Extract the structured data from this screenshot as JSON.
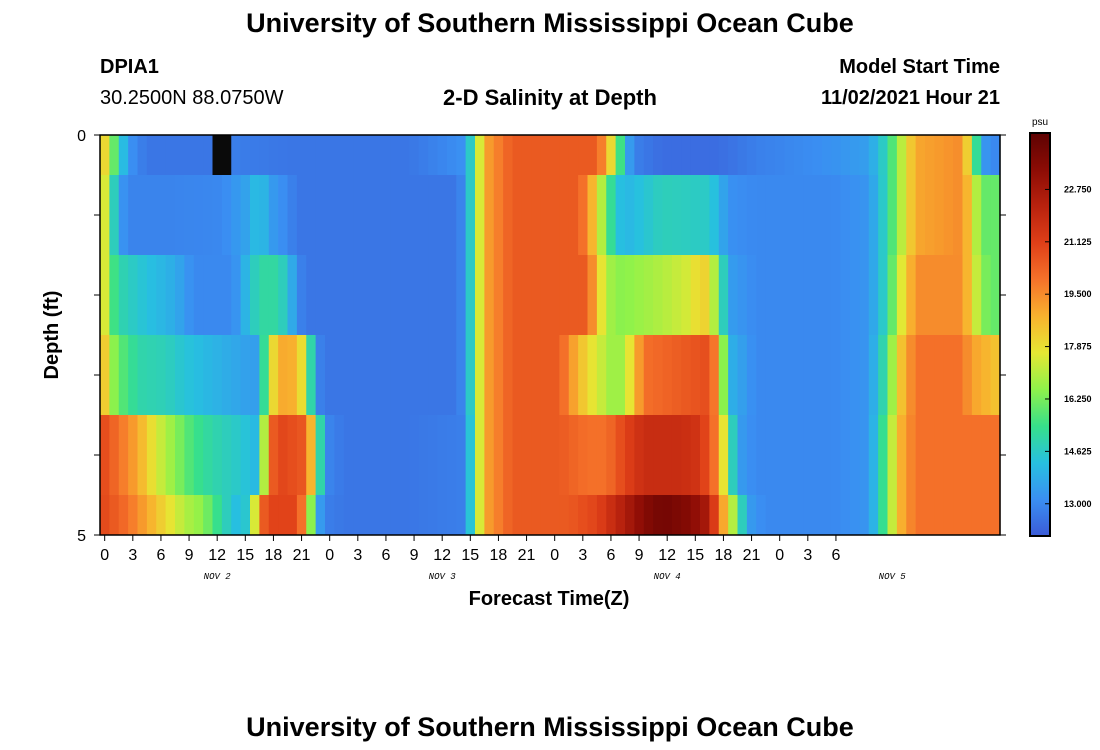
{
  "header": {
    "title": "University of Southern Mississippi Ocean Cube",
    "station": "DPIA1",
    "coords": "30.2500N  88.0750W",
    "chart_title": "2-D Salinity at Depth",
    "model_label": "Model Start Time",
    "model_time": "11/02/2021 Hour 21"
  },
  "footer": {
    "title": "University of Southern Mississippi Ocean Cube"
  },
  "chart_data": {
    "type": "heatmap",
    "title": "2-D Salinity at Depth",
    "xlabel": "Forecast Time(Z)",
    "ylabel": "Depth (ft)",
    "x_tick_labels": [
      "0",
      "3",
      "6",
      "9",
      "12",
      "15",
      "18",
      "21",
      "0",
      "3",
      "6",
      "9",
      "12",
      "15",
      "18",
      "21",
      "0",
      "3",
      "6",
      "9",
      "12",
      "15",
      "18",
      "21",
      "0",
      "3",
      "6"
    ],
    "date_labels": [
      "NOV 2",
      "NOV 3",
      "NOV 4",
      "NOV 5"
    ],
    "y_tick_labels": [
      "0",
      "5"
    ],
    "ylim": [
      0,
      5
    ],
    "colorbar": {
      "unit": "psu",
      "tick_labels": [
        "13.000",
        "14.625",
        "16.250",
        "17.875",
        "19.500",
        "21.125",
        "22.750"
      ],
      "range": [
        12.0,
        24.5
      ],
      "colors": [
        "#3b5bd7",
        "#3a8ff2",
        "#27c0e0",
        "#37e08a",
        "#8ff24a",
        "#e6e733",
        "#f8b22e",
        "#f5722a",
        "#df3f18",
        "#b9220e",
        "#8c0c05",
        "#5e0202"
      ]
    },
    "hour_step": 1,
    "row_depths_ft": [
      0,
      1,
      2,
      3,
      4,
      5
    ],
    "salinity_keypoints": [
      [
        [
          0,
          19
        ],
        [
          1,
          17
        ],
        [
          2,
          15
        ],
        [
          3,
          13.3
        ],
        [
          5,
          12.6
        ],
        [
          12,
          12.6
        ],
        [
          13,
          12.8
        ],
        [
          20,
          12.6
        ],
        [
          33,
          12.6
        ],
        [
          39,
          13.2
        ],
        [
          40,
          16
        ],
        [
          41,
          19
        ],
        [
          44,
          20.5
        ],
        [
          53,
          20.5
        ],
        [
          54,
          19
        ],
        [
          55,
          17
        ],
        [
          56,
          14
        ],
        [
          57,
          12.8
        ],
        [
          60,
          12.4
        ],
        [
          66,
          12.4
        ],
        [
          70,
          12.8
        ],
        [
          72,
          12.9
        ],
        [
          78,
          13.2
        ],
        [
          82,
          13.5
        ],
        [
          84,
          15
        ],
        [
          85,
          16.5
        ],
        [
          87,
          19
        ],
        [
          92,
          19.5
        ],
        [
          93,
          17
        ],
        [
          94,
          13.5
        ],
        [
          95,
          13
        ]
      ],
      [
        [
          0,
          19
        ],
        [
          1,
          16
        ],
        [
          2,
          13.5
        ],
        [
          3,
          12.9
        ],
        [
          5,
          12.9
        ],
        [
          8,
          12.9
        ],
        [
          13,
          13
        ],
        [
          16,
          13.7
        ],
        [
          17,
          14.5
        ],
        [
          18,
          13.5
        ],
        [
          20,
          13
        ],
        [
          21,
          12.6
        ],
        [
          33,
          12.6
        ],
        [
          38,
          12.6
        ],
        [
          39,
          13.2
        ],
        [
          40,
          16
        ],
        [
          41,
          19
        ],
        [
          44,
          20.5
        ],
        [
          51,
          20.5
        ],
        [
          52,
          19.5
        ],
        [
          53,
          18
        ],
        [
          54,
          16
        ],
        [
          55,
          14.5
        ],
        [
          56,
          14
        ],
        [
          60,
          14.8
        ],
        [
          65,
          14.6
        ],
        [
          66,
          14
        ],
        [
          67,
          13.2
        ],
        [
          70,
          13
        ],
        [
          78,
          13
        ],
        [
          82,
          13.3
        ],
        [
          84,
          15
        ],
        [
          85,
          16.5
        ],
        [
          87,
          19
        ],
        [
          92,
          19.5
        ],
        [
          93,
          18
        ],
        [
          94,
          16
        ],
        [
          95,
          16
        ]
      ],
      [
        [
          0,
          19
        ],
        [
          1,
          16
        ],
        [
          2,
          15
        ],
        [
          4,
          14.5
        ],
        [
          8,
          13.8
        ],
        [
          10,
          13
        ],
        [
          14,
          13
        ],
        [
          15,
          13.5
        ],
        [
          16,
          14.5
        ],
        [
          17,
          15
        ],
        [
          18,
          15.2
        ],
        [
          19,
          15
        ],
        [
          20,
          14.5
        ],
        [
          21,
          13
        ],
        [
          22,
          12.6
        ],
        [
          33,
          12.6
        ],
        [
          38,
          12.6
        ],
        [
          39,
          13.2
        ],
        [
          40,
          16
        ],
        [
          41,
          19
        ],
        [
          44,
          20.5
        ],
        [
          52,
          20.5
        ],
        [
          53,
          18.5
        ],
        [
          54,
          17
        ],
        [
          55,
          16.5
        ],
        [
          56,
          16.5
        ],
        [
          60,
          17
        ],
        [
          63,
          17.5
        ],
        [
          64,
          18.2
        ],
        [
          65,
          18
        ],
        [
          66,
          16
        ],
        [
          67,
          13.5
        ],
        [
          70,
          13
        ],
        [
          78,
          13
        ],
        [
          82,
          13.3
        ],
        [
          84,
          15
        ],
        [
          85,
          17
        ],
        [
          87,
          19.5
        ],
        [
          92,
          19.5
        ],
        [
          93,
          18
        ],
        [
          94,
          16.5
        ],
        [
          95,
          16
        ]
      ],
      [
        [
          0,
          19.5
        ],
        [
          1,
          17
        ],
        [
          2,
          16
        ],
        [
          4,
          15
        ],
        [
          7,
          14.8
        ],
        [
          9,
          14.4
        ],
        [
          12,
          14
        ],
        [
          16,
          13.5
        ],
        [
          17,
          13.5
        ],
        [
          18,
          17
        ],
        [
          19,
          19
        ],
        [
          21,
          18.8
        ],
        [
          22,
          17
        ],
        [
          23,
          13
        ],
        [
          24,
          12.6
        ],
        [
          33,
          12.6
        ],
        [
          38,
          12.6
        ],
        [
          39,
          13.2
        ],
        [
          40,
          16
        ],
        [
          41,
          19
        ],
        [
          44,
          20.5
        ],
        [
          49,
          20.5
        ],
        [
          50,
          19.5
        ],
        [
          52,
          18
        ],
        [
          54,
          17
        ],
        [
          55,
          16.5
        ],
        [
          56,
          17
        ],
        [
          57,
          18.5
        ],
        [
          58,
          20
        ],
        [
          65,
          20.8
        ],
        [
          66,
          19
        ],
        [
          67,
          14
        ],
        [
          70,
          13
        ],
        [
          78,
          13
        ],
        [
          82,
          13.3
        ],
        [
          84,
          15.5
        ],
        [
          85,
          18
        ],
        [
          87,
          20
        ],
        [
          92,
          20
        ],
        [
          93,
          19
        ],
        [
          94,
          19
        ],
        [
          95,
          18.5
        ]
      ],
      [
        [
          0,
          21
        ],
        [
          2,
          20
        ],
        [
          4,
          19
        ],
        [
          6,
          17.5
        ],
        [
          8,
          16.5
        ],
        [
          10,
          15.5
        ],
        [
          12,
          15
        ],
        [
          15,
          14.5
        ],
        [
          17,
          14
        ],
        [
          18,
          20
        ],
        [
          19,
          21
        ],
        [
          22,
          20.5
        ],
        [
          23,
          17
        ],
        [
          24,
          13
        ],
        [
          26,
          12.6
        ],
        [
          33,
          12.6
        ],
        [
          39,
          12.8
        ],
        [
          40,
          16
        ],
        [
          41,
          19
        ],
        [
          44,
          20.5
        ],
        [
          49,
          20.5
        ],
        [
          52,
          20
        ],
        [
          54,
          20
        ],
        [
          55,
          20.5
        ],
        [
          56,
          21
        ],
        [
          58,
          21.8
        ],
        [
          62,
          21.8
        ],
        [
          64,
          21.5
        ],
        [
          65,
          20.5
        ],
        [
          66,
          19.5
        ],
        [
          67,
          16
        ],
        [
          68,
          13.5
        ],
        [
          70,
          13
        ],
        [
          78,
          13
        ],
        [
          82,
          13.3
        ],
        [
          84,
          16
        ],
        [
          85,
          18.5
        ],
        [
          87,
          20
        ],
        [
          95,
          20
        ]
      ],
      [
        [
          0,
          21
        ],
        [
          3,
          20
        ],
        [
          5,
          19
        ],
        [
          7,
          18
        ],
        [
          9,
          17
        ],
        [
          11,
          16.5
        ],
        [
          13,
          15
        ],
        [
          15,
          14
        ],
        [
          16,
          15
        ],
        [
          17,
          20
        ],
        [
          18,
          21
        ],
        [
          21,
          21
        ],
        [
          22,
          19
        ],
        [
          23,
          14
        ],
        [
          24,
          12.8
        ],
        [
          26,
          12.6
        ],
        [
          33,
          12.6
        ],
        [
          39,
          12.8
        ],
        [
          40,
          16
        ],
        [
          41,
          19
        ],
        [
          44,
          20.5
        ],
        [
          50,
          20.5
        ],
        [
          53,
          21
        ],
        [
          55,
          22
        ],
        [
          57,
          23
        ],
        [
          58,
          23.5
        ],
        [
          60,
          24
        ],
        [
          63,
          23.5
        ],
        [
          65,
          22.5
        ],
        [
          66,
          20
        ],
        [
          67,
          18
        ],
        [
          68,
          16
        ],
        [
          69,
          13.5
        ],
        [
          71,
          13
        ],
        [
          78,
          13
        ],
        [
          82,
          13.3
        ],
        [
          84,
          16
        ],
        [
          85,
          18.5
        ],
        [
          87,
          20
        ],
        [
          95,
          20
        ]
      ]
    ],
    "anomaly": {
      "hours": [
        12,
        13
      ],
      "row": 0,
      "color": "#0a0a0a"
    }
  }
}
